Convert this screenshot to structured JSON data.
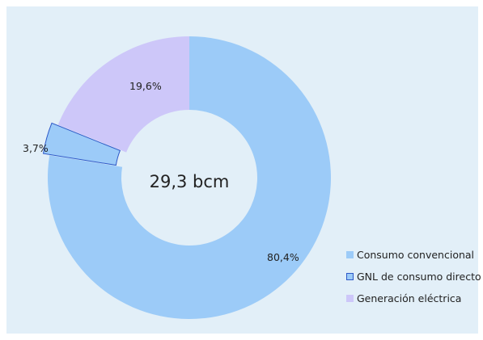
{
  "chart_data": {
    "type": "pie",
    "donut": true,
    "center_text": "29,3 bcm",
    "categories": [
      "Consumo convencional",
      "GNL de consumo directo",
      "Generación eléctrica"
    ],
    "values": [
      80.4,
      3.7,
      19.6
    ],
    "value_labels": [
      "80,4%",
      "3,7%",
      "19,6%"
    ],
    "colors": [
      "#9ccbf8",
      "#9ccbf8",
      "#cdc7f9"
    ],
    "exploded": [
      false,
      true,
      false
    ],
    "slice_stroke": [
      "none",
      "#2e59c8",
      "none"
    ],
    "legend": {
      "position": "bottom-right",
      "entries": [
        {
          "label": "Consumo convencional",
          "color": "#9ccbf8",
          "border": "#9ccbf8"
        },
        {
          "label": "GNL de consumo directo",
          "color": "#9ccbf8",
          "border": "#2e59c8"
        },
        {
          "label": "Generación eléctrica",
          "color": "#cdc7f9",
          "border": "#cdc7f9"
        }
      ]
    }
  }
}
